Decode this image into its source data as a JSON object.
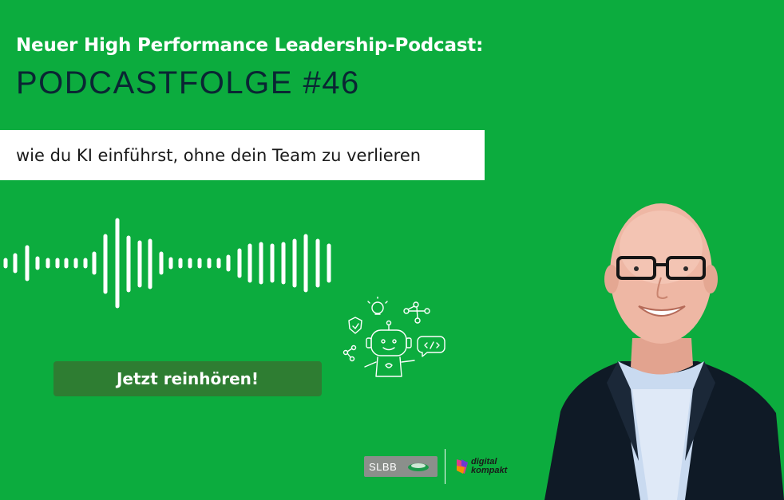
{
  "header": {
    "kicker": "Neuer High Performance Leadership-Podcast:",
    "headline": "PODCASTFOLGE #46"
  },
  "subtitle": "wie du KI einführst, ohne dein Team zu verlieren",
  "cta": {
    "label": "Jetzt reinhören!"
  },
  "logos": {
    "slbb": "SLBB",
    "digital_kompakt_line1": "digital",
    "digital_kompakt_line2": "kompakt"
  },
  "colors": {
    "background": "#0cac3e",
    "cta": "#2e7d32",
    "headline": "#0a2633"
  },
  "icons": [
    "sound-wave-icon",
    "robot-ideas-icon",
    "slbb-logo",
    "digital-kompakt-logo"
  ]
}
